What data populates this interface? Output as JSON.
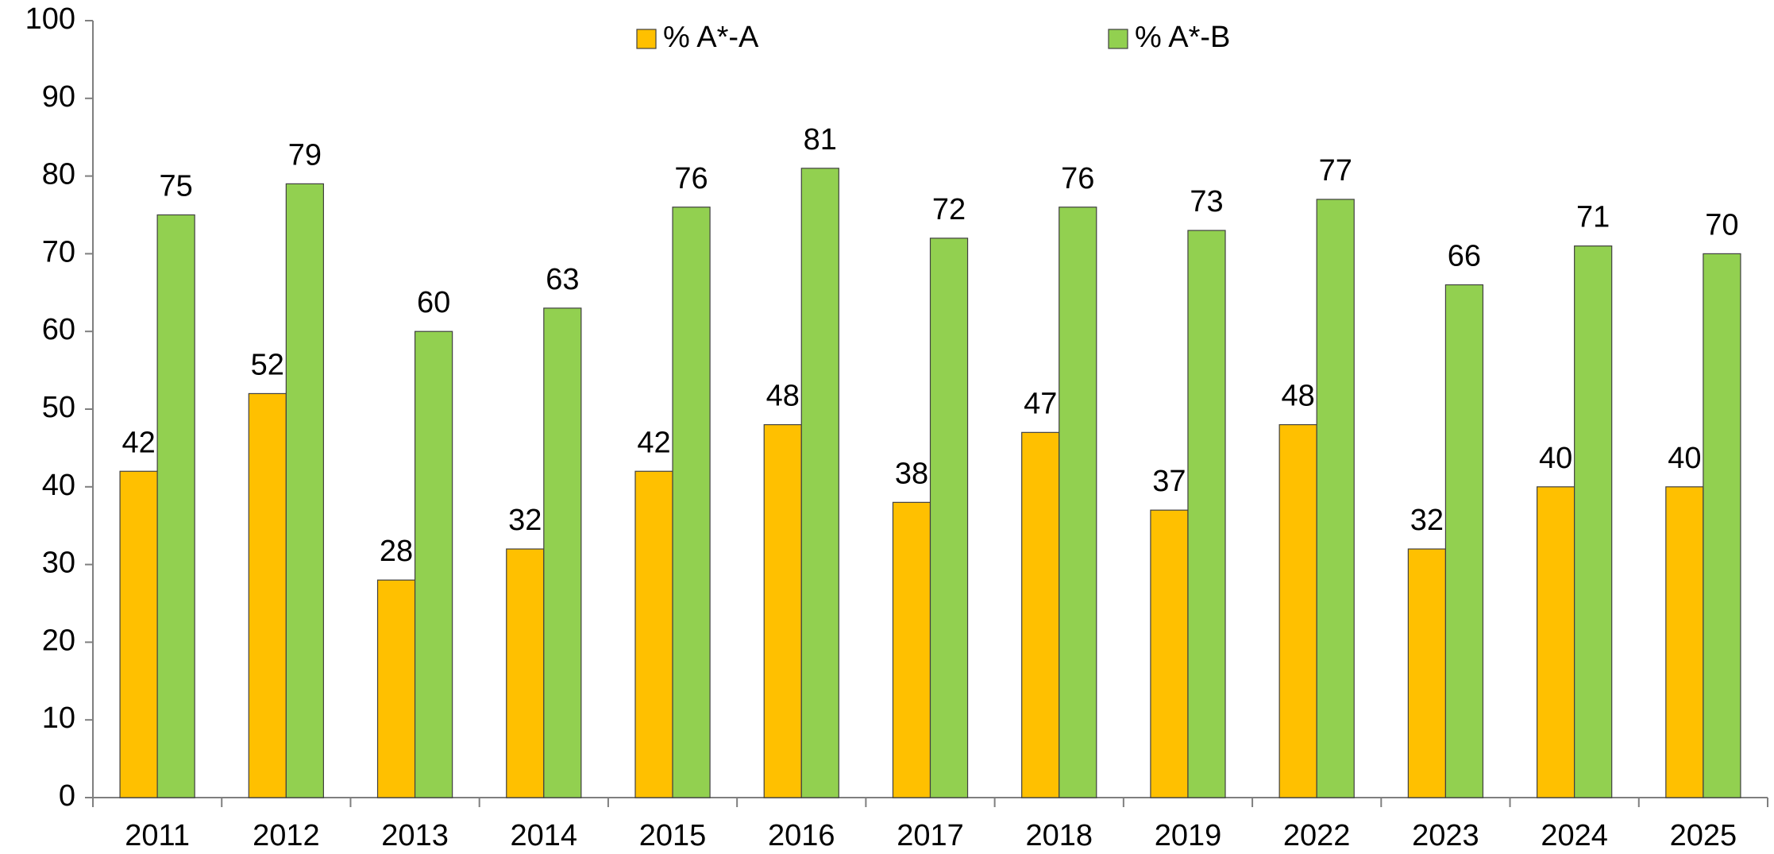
{
  "chart_data": {
    "type": "bar",
    "categories": [
      "2011",
      "2012",
      "2013",
      "2014",
      "2015",
      "2016",
      "2017",
      "2018",
      "2019",
      "2022",
      "2023",
      "2024",
      "2025"
    ],
    "series": [
      {
        "name": "% A*-A",
        "color": "#ffc000",
        "values": [
          42,
          52,
          28,
          32,
          42,
          48,
          38,
          47,
          37,
          48,
          32,
          40,
          40
        ]
      },
      {
        "name": "% A*-B",
        "color": "#92d050",
        "values": [
          75,
          79,
          60,
          63,
          76,
          81,
          72,
          76,
          73,
          77,
          66,
          71,
          70
        ]
      }
    ],
    "ylim": [
      0,
      100
    ],
    "yticks": [
      0,
      10,
      20,
      30,
      40,
      50,
      60,
      70,
      80,
      90,
      100
    ],
    "grid": false,
    "legend": "top"
  }
}
